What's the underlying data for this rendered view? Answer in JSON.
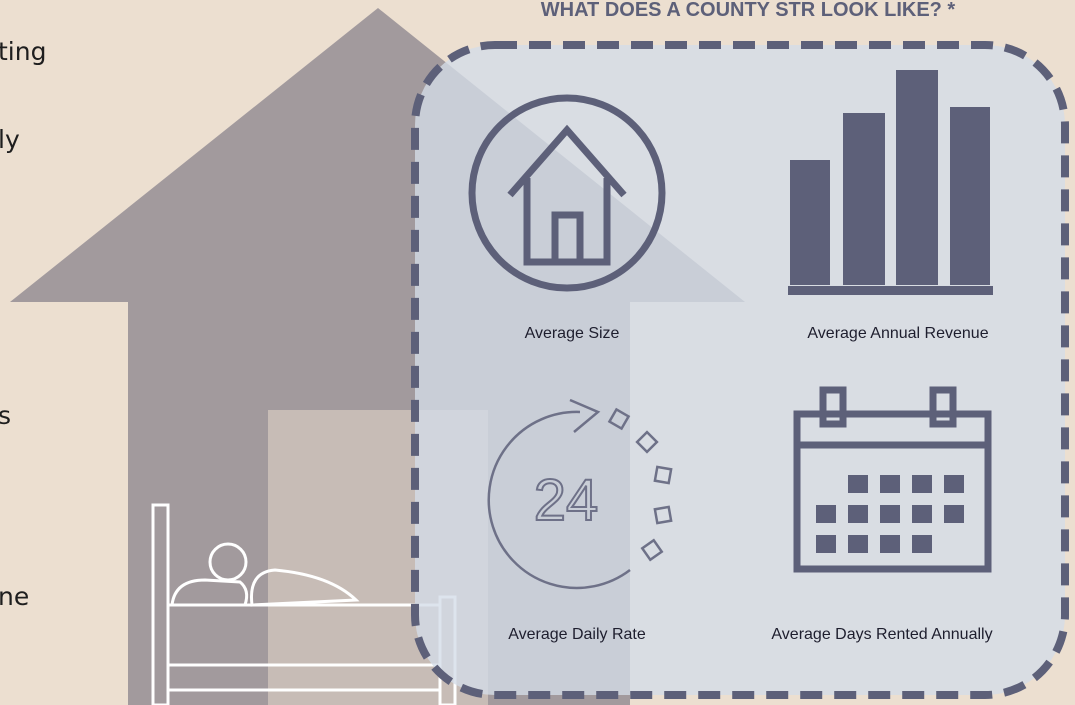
{
  "header": {
    "title": "WHAT DOES A COUNTY STR LOOK LIKE? *"
  },
  "left_text": [
    "ting",
    "ly",
    "s",
    "ne"
  ],
  "tiles": [
    {
      "label": "Average Size"
    },
    {
      "label": "Average Annual Revenue"
    },
    {
      "label": "Average Daily Rate"
    },
    {
      "label": "Average Days Rented Annually"
    }
  ]
}
